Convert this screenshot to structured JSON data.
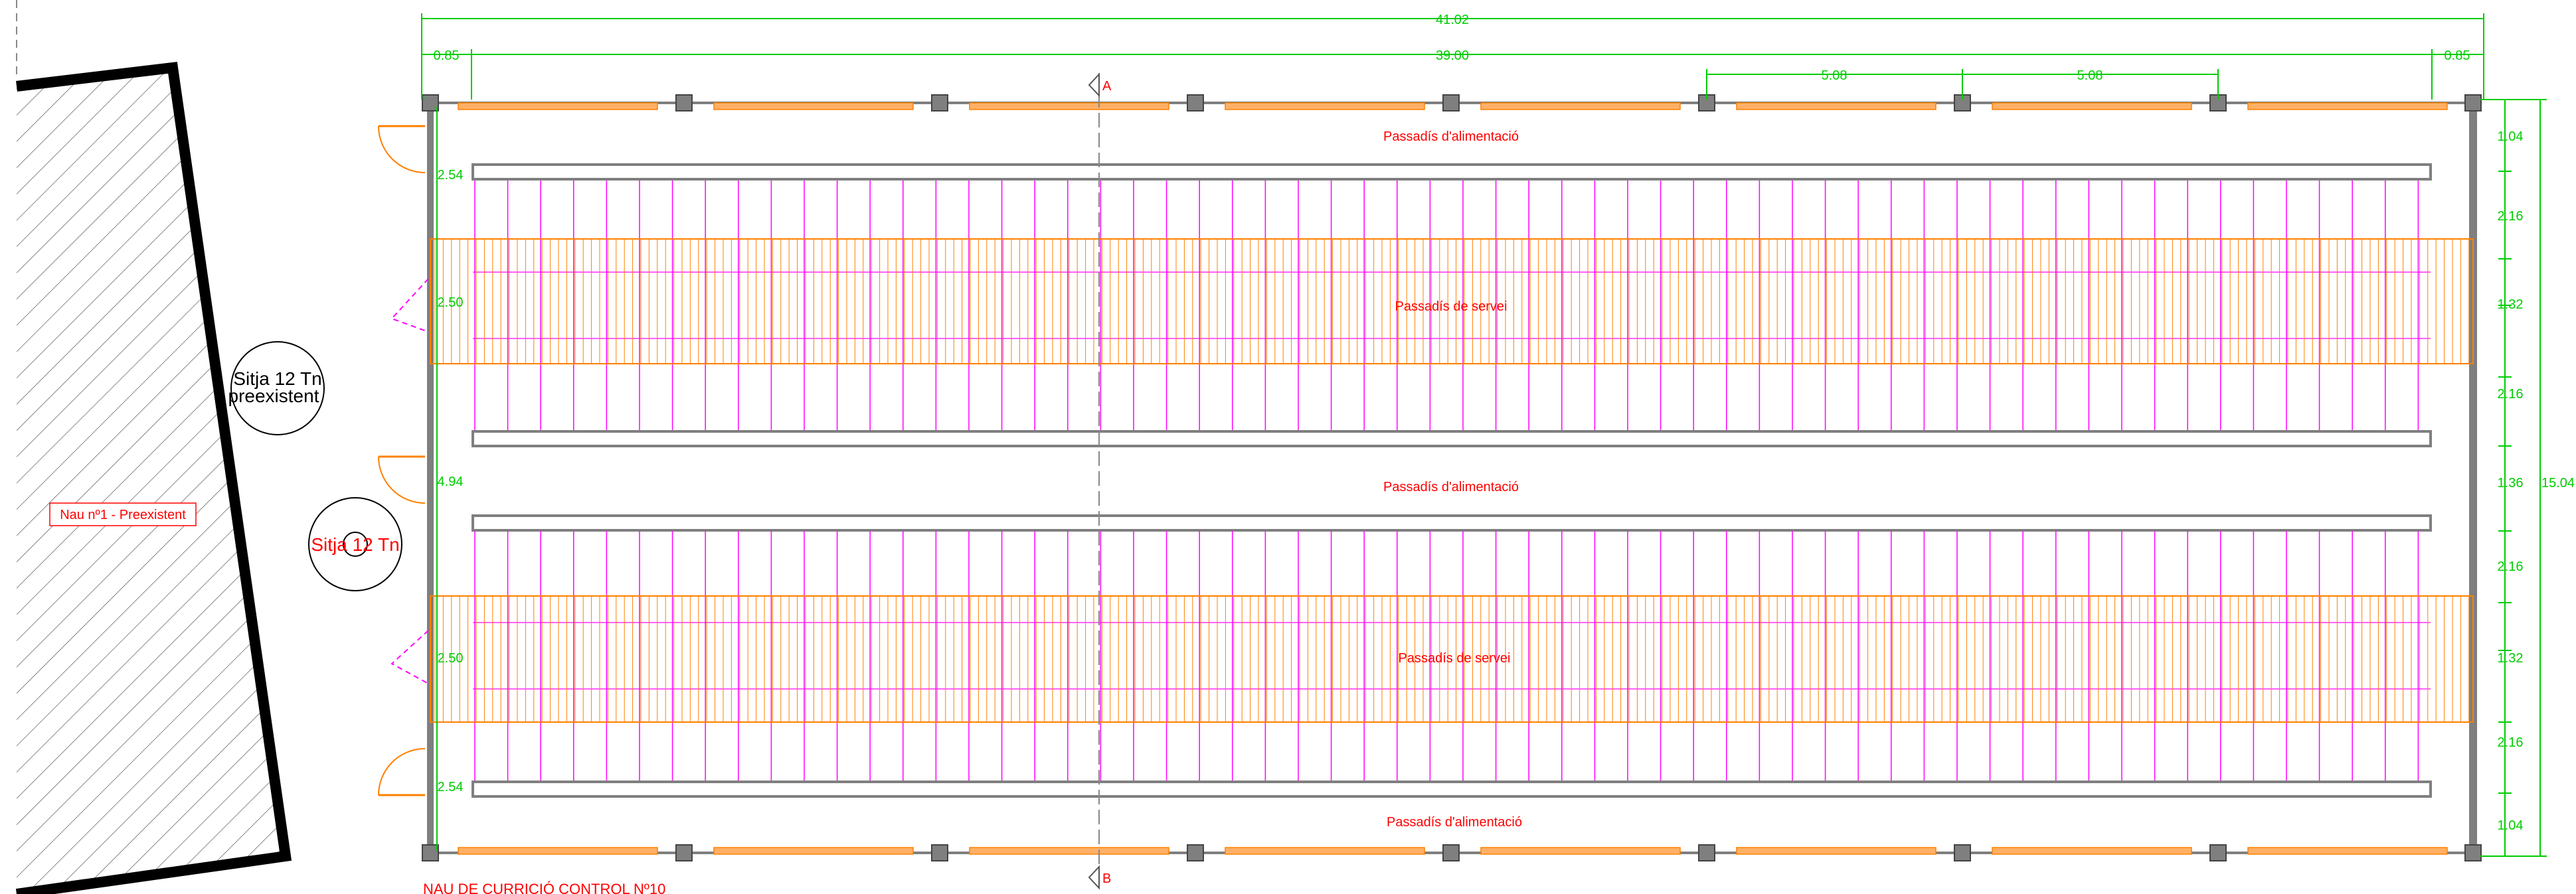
{
  "dims": {
    "top_total": "41.02",
    "top_left_margin": "0.85",
    "top_inner": "39.00",
    "top_right_margin": "0.85",
    "bay_1": "5.08",
    "bay_2": "5.08",
    "right_segments": [
      "1.04",
      "2.16",
      "1.32",
      "2.16",
      "1.36",
      "2.16",
      "1.32",
      "2.16",
      "1.04"
    ],
    "right_total": "15.04",
    "left_segments": [
      "2.54",
      "2.50",
      "4.94",
      "2.50",
      "2.54"
    ]
  },
  "labels": {
    "feed_corridor": "Passadís d'alimentació",
    "service_corridor": "Passadís de servei",
    "silo_existing_line1": "Sitja 12 Tn",
    "silo_existing_line2": "preexistent",
    "silo_new": "Sitja 12 Tn",
    "existing_building": "Nau nº1 - Preexistent",
    "section_a": "A",
    "section_b": "B",
    "building_title": "NAU DE CURRICIÓ CONTROL Nº10"
  },
  "colors": {
    "wall": "#7f7f7f",
    "pen_lines": "#ff00ff",
    "slats": "#ff8000",
    "dimension": "#00cc00",
    "text_red": "#ff0000",
    "outline_black": "#000000"
  }
}
